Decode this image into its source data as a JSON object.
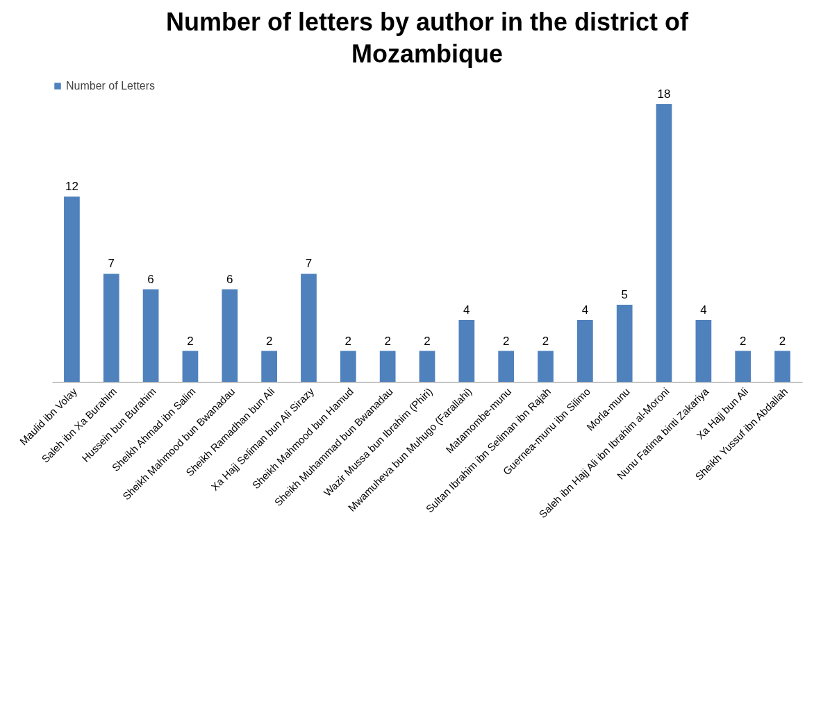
{
  "chart_data": {
    "type": "bar",
    "title": "Number of letters  by author in the district of Mozambique",
    "categories": [
      "Maulid ibn Volay",
      "Saleh ibn Xa Burahim",
      "Hussein bun Burahim",
      "Sheikh Ahmad ibn Salim",
      "Sheikh Mahmood bun Bwanadau",
      "Sheikh Ramadhan bun Ali",
      "Xa Hajj Seliman bun Ali Sirazy",
      "Sheikh Mahmood bun Hamud",
      "Sheikh Muhammad bun Bwanadau",
      "Wazir Mussa bun Ibrahim (Phiri)",
      "Mwamuheva bun Muhugo (Farallahi)",
      "Matamombe-munu",
      "Sultan Ibrahim ibn Seliman ibn Rajah",
      "Guernea-munu ibn Silimo",
      "Morla-munu",
      "Saleh ibn Hajj Ali ibn Ibrahim al-Moroni",
      "Nunu Fatima binti Zakariya",
      "Xa Hajj bun Ali",
      "Sheikh Yussuf ibn Abdallah"
    ],
    "series": [
      {
        "name": "Number of Letters",
        "color": "#4f81bd",
        "values": [
          12,
          7,
          6,
          2,
          6,
          2,
          7,
          2,
          2,
          2,
          4,
          2,
          2,
          4,
          5,
          18,
          4,
          2,
          2
        ]
      }
    ],
    "data_labels": true,
    "legend": "top",
    "grid": false,
    "tick_labels": "x"
  }
}
